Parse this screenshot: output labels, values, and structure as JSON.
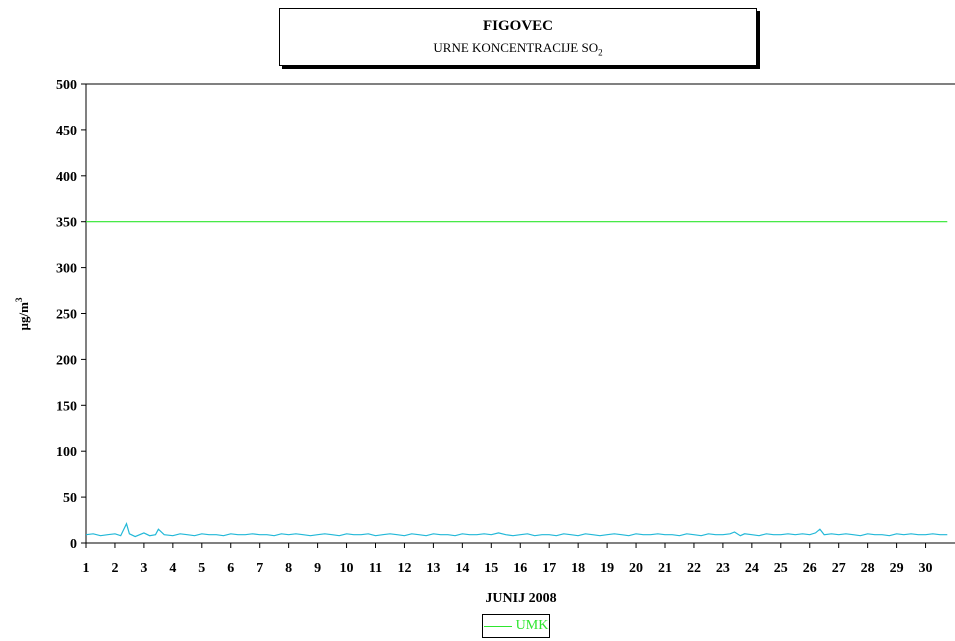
{
  "header": {
    "title": "FIGOVEC",
    "subtitle_main": "URNE KONCENTRACIJE SO",
    "subtitle_sub": "2"
  },
  "colors": {
    "umk": "#2EE62E",
    "so2": "#22B8D8"
  },
  "chart_data": {
    "type": "line",
    "title": "FIGOVEC",
    "subtitle": "URNE KONCENTRACIJE SO2",
    "xlabel": "JUNIJ 2008",
    "ylabel": "µg/m³",
    "ylabel_main": "µg/m",
    "ylabel_sup": "3",
    "ylim": [
      0,
      500
    ],
    "yticks": [
      0,
      50,
      100,
      150,
      200,
      250,
      300,
      350,
      400,
      450,
      500
    ],
    "xticks": [
      1,
      2,
      3,
      4,
      5,
      6,
      7,
      8,
      9,
      10,
      11,
      12,
      13,
      14,
      15,
      16,
      17,
      18,
      19,
      20,
      21,
      22,
      23,
      24,
      25,
      26,
      27,
      28,
      29,
      30
    ],
    "xlim": [
      1,
      30.75
    ],
    "grid": false,
    "legend_position": "bottom",
    "series": [
      {
        "name": "UMK",
        "x": [
          1,
          30.75
        ],
        "values": [
          350,
          350
        ]
      },
      {
        "x": [
          1.0,
          1.25,
          1.5,
          1.75,
          2.0,
          2.2,
          2.4,
          2.5,
          2.7,
          3.0,
          3.2,
          3.4,
          3.5,
          3.7,
          4.0,
          4.25,
          4.5,
          4.75,
          5.0,
          5.25,
          5.5,
          5.75,
          6.0,
          6.25,
          6.5,
          6.75,
          7.0,
          7.25,
          7.5,
          7.75,
          8.0,
          8.25,
          8.5,
          8.75,
          9.0,
          9.25,
          9.5,
          9.75,
          10.0,
          10.25,
          10.5,
          10.75,
          11.0,
          11.25,
          11.5,
          11.75,
          12.0,
          12.25,
          12.5,
          12.75,
          13.0,
          13.25,
          13.5,
          13.75,
          14.0,
          14.25,
          14.5,
          14.75,
          15.0,
          15.25,
          15.5,
          15.75,
          16.0,
          16.25,
          16.5,
          16.75,
          17.0,
          17.25,
          17.5,
          17.75,
          18.0,
          18.25,
          18.5,
          18.75,
          19.0,
          19.25,
          19.5,
          19.75,
          20.0,
          20.25,
          20.5,
          20.75,
          21.0,
          21.25,
          21.5,
          21.75,
          22.0,
          22.25,
          22.5,
          22.75,
          23.0,
          23.25,
          23.4,
          23.6,
          23.75,
          24.0,
          24.25,
          24.5,
          24.75,
          25.0,
          25.25,
          25.5,
          25.75,
          26.0,
          26.2,
          26.35,
          26.5,
          26.75,
          27.0,
          27.25,
          27.5,
          27.75,
          28.0,
          28.25,
          28.5,
          28.75,
          29.0,
          29.25,
          29.5,
          29.75,
          30.0,
          30.25,
          30.5,
          30.75
        ],
        "values": [
          9,
          10,
          8,
          9,
          10,
          8,
          21,
          10,
          7,
          11,
          8,
          9,
          15,
          9,
          8,
          10,
          9,
          8,
          10,
          9,
          9,
          8,
          10,
          9,
          9,
          10,
          9,
          9,
          8,
          10,
          9,
          10,
          9,
          8,
          9,
          10,
          9,
          8,
          10,
          9,
          9,
          10,
          8,
          9,
          10,
          9,
          8,
          10,
          9,
          8,
          10,
          9,
          9,
          8,
          10,
          9,
          9,
          10,
          9,
          11,
          9,
          8,
          9,
          10,
          8,
          9,
          9,
          8,
          10,
          9,
          8,
          10,
          9,
          8,
          9,
          10,
          9,
          8,
          10,
          9,
          9,
          10,
          9,
          9,
          8,
          10,
          9,
          8,
          10,
          9,
          9,
          10,
          12,
          8,
          10,
          9,
          8,
          10,
          9,
          9,
          10,
          9,
          10,
          9,
          11,
          15,
          9,
          10,
          9,
          10,
          9,
          8,
          10,
          9,
          9,
          8,
          10,
          9,
          10,
          9,
          9,
          10,
          9,
          9
        ]
      }
    ]
  },
  "legend": {
    "label": "UMK"
  }
}
